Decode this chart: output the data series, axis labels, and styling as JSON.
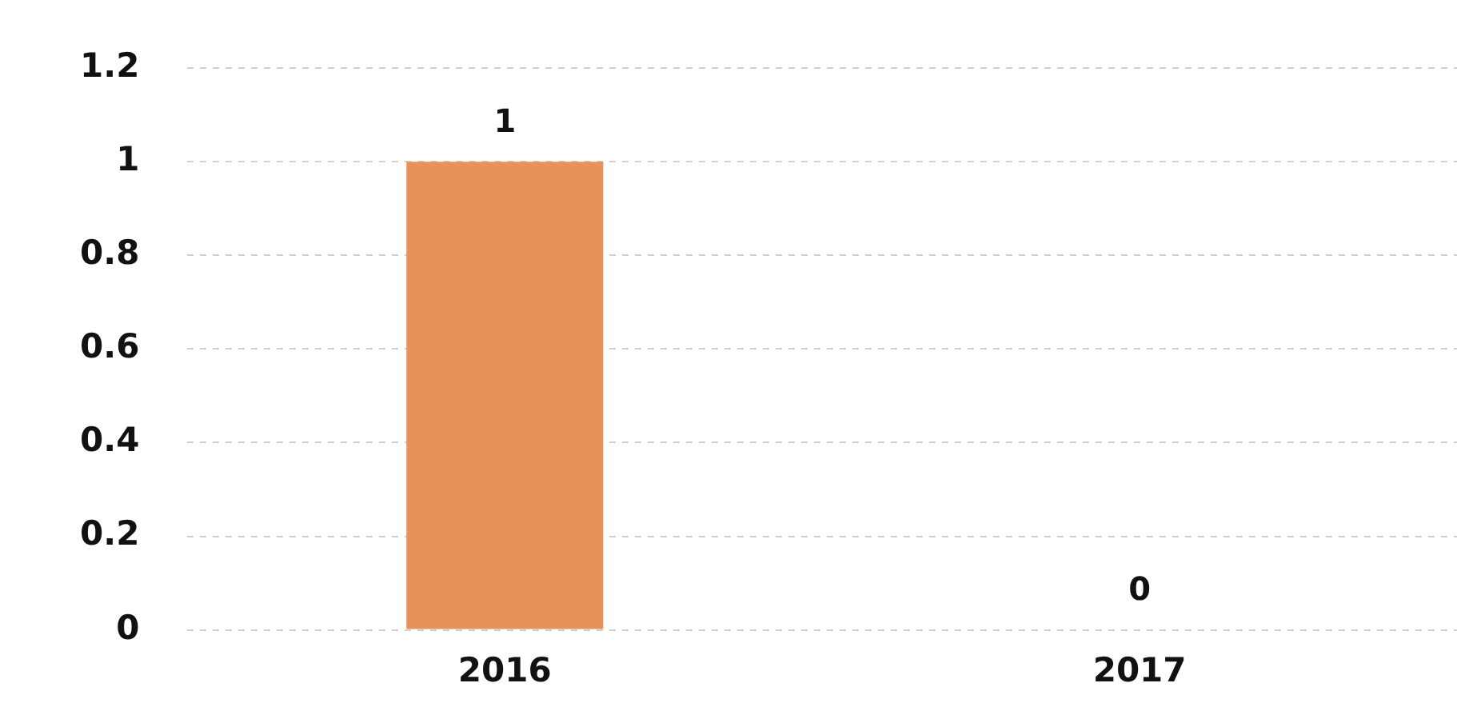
{
  "chart_data": {
    "type": "bar",
    "categories": [
      "2016",
      "2017"
    ],
    "values": [
      1,
      0
    ],
    "color": "#e8915a",
    "ylim": [
      0,
      1.2
    ],
    "yticks": [
      0,
      0.2,
      0.4,
      0.6,
      0.8,
      1,
      1.2
    ],
    "grid": "y",
    "data_labels": true,
    "legend": false
  }
}
